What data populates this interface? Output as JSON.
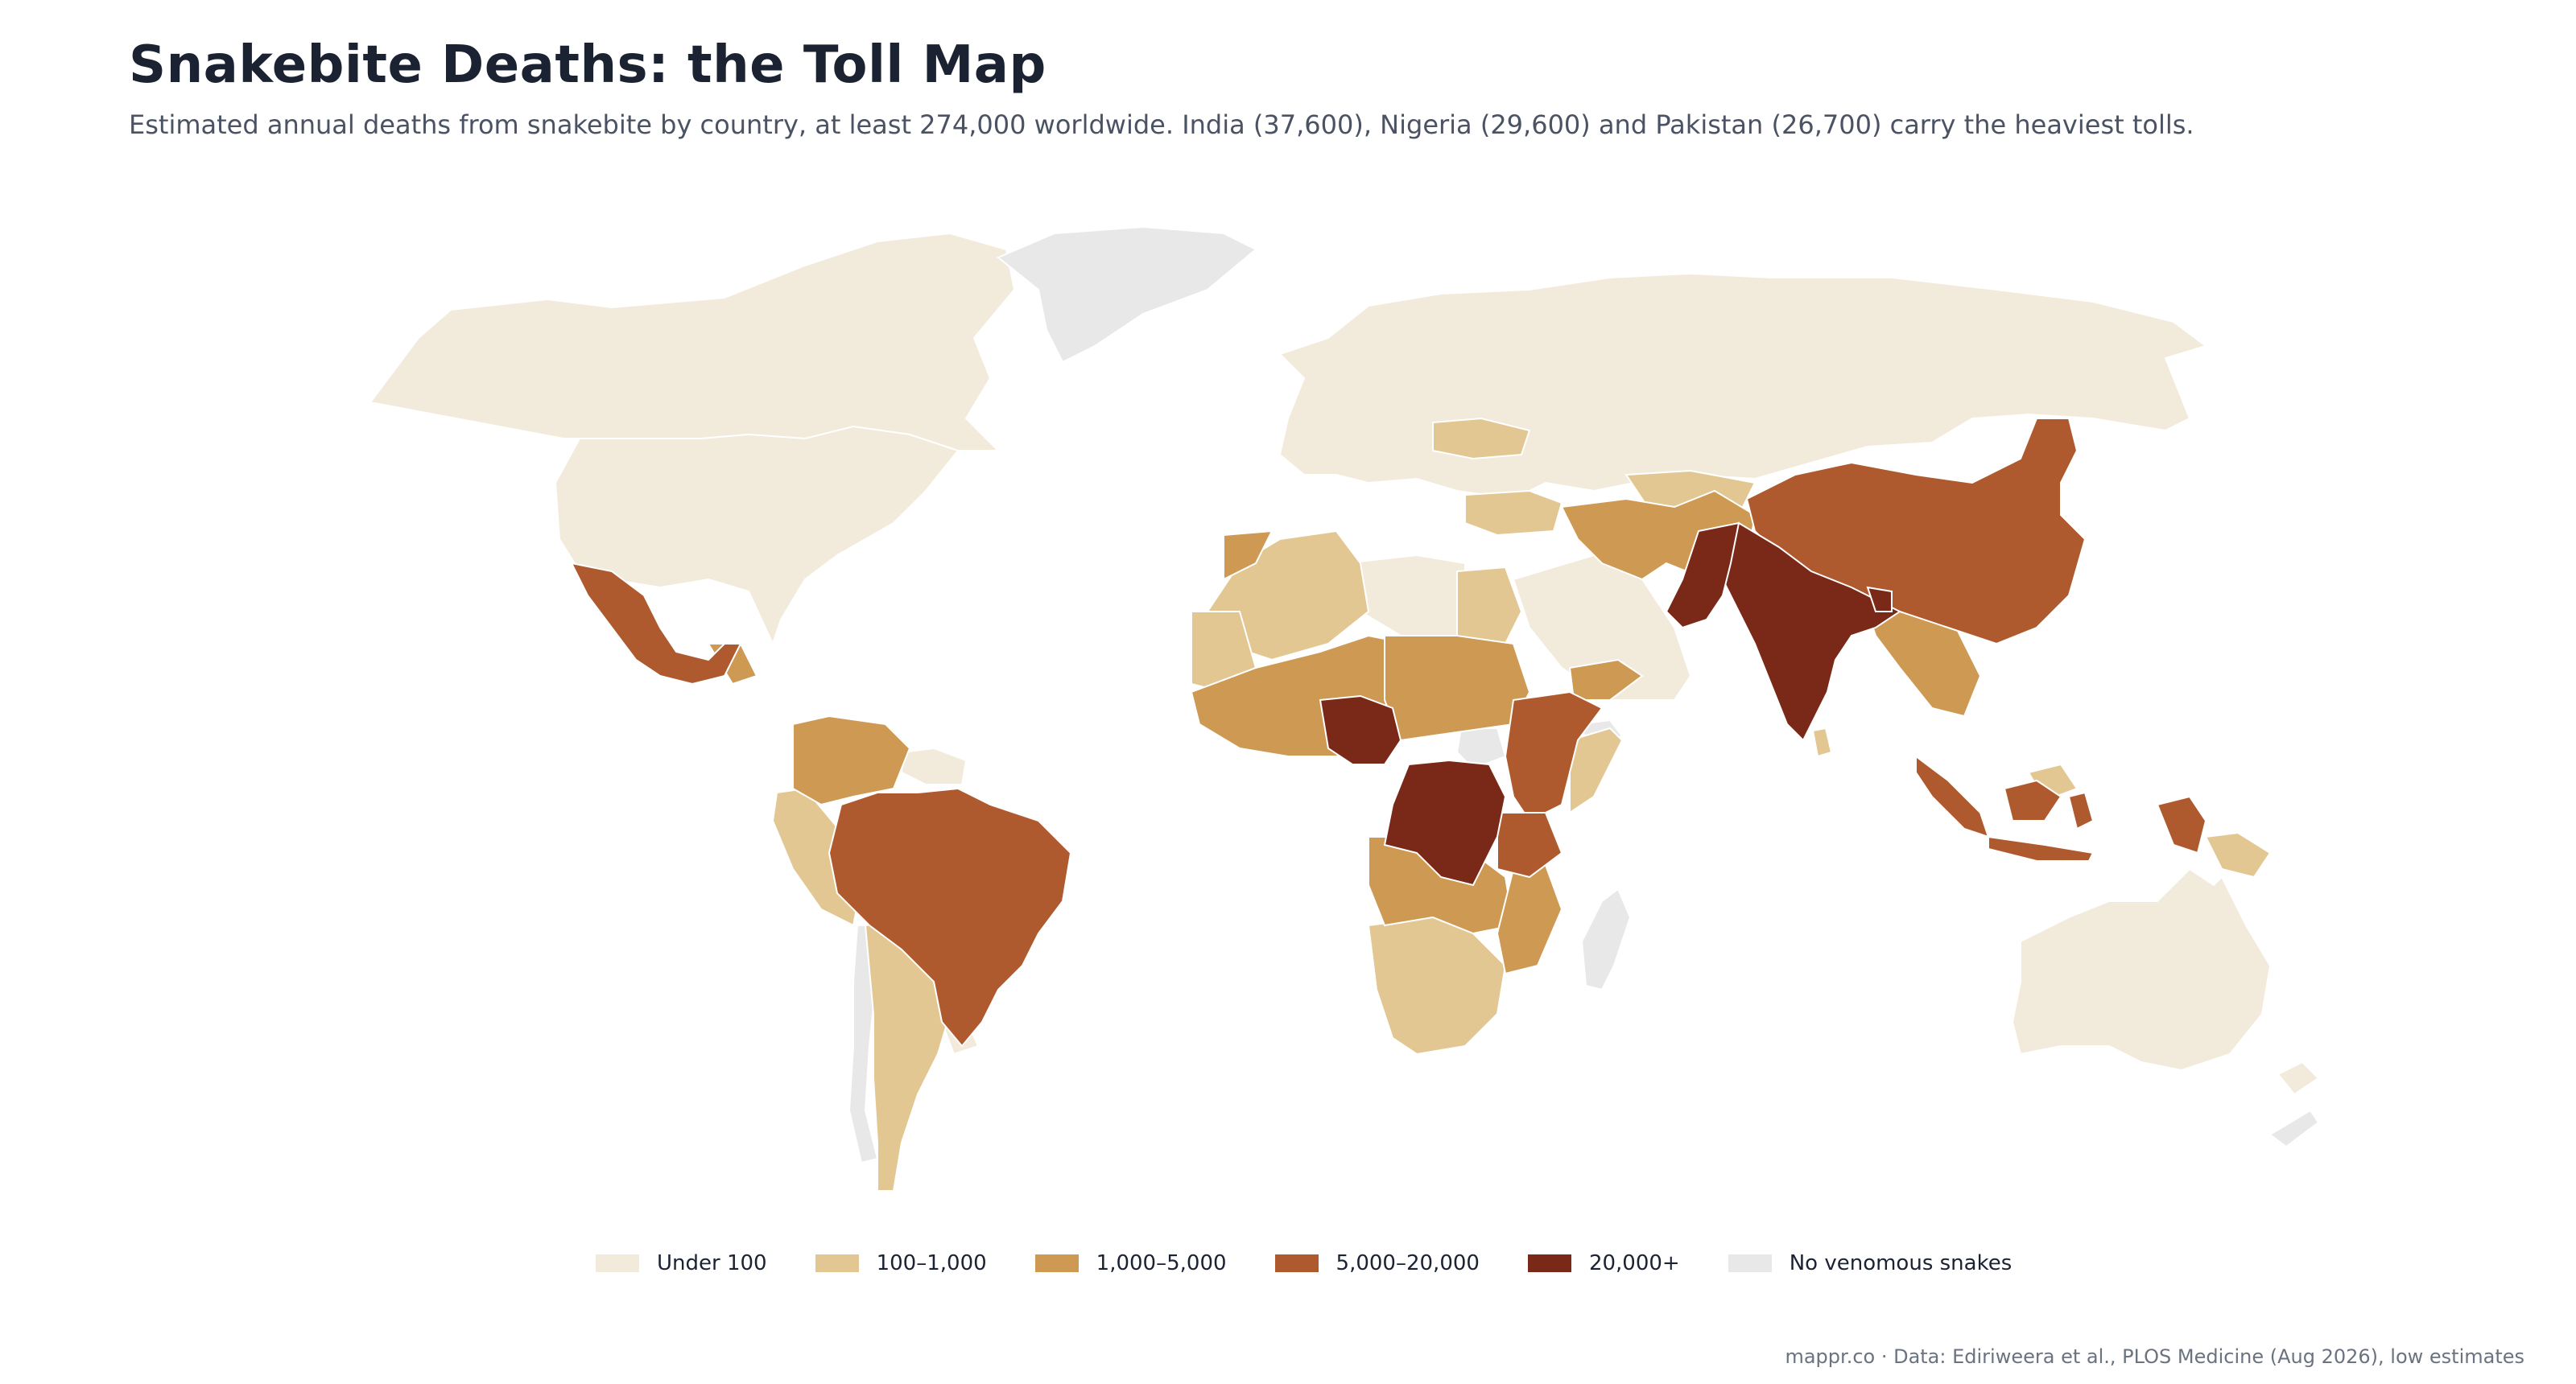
{
  "header": {
    "title": "Snakebite Deaths: the Toll Map",
    "subtitle": "Estimated annual deaths from snakebite by country, at least 274,000 worldwide. India (37,600), Nigeria (29,600) and Pakistan (26,700) carry the heaviest tolls."
  },
  "legend": {
    "items": [
      {
        "label": "Under 100",
        "color": "#f2eadb"
      },
      {
        "label": "100–1,000",
        "color": "#e3c793"
      },
      {
        "label": "1,000–5,000",
        "color": "#cd9953"
      },
      {
        "label": "5,000–20,000",
        "color": "#af5a2e"
      },
      {
        "label": "20,000+",
        "color": "#7a2818"
      },
      {
        "label": "No venomous snakes",
        "color": "#e8e8e8"
      }
    ]
  },
  "source": "mappr.co · Data: Ediriweera et al., PLOS Medicine (Aug 2026), low estimates"
}
